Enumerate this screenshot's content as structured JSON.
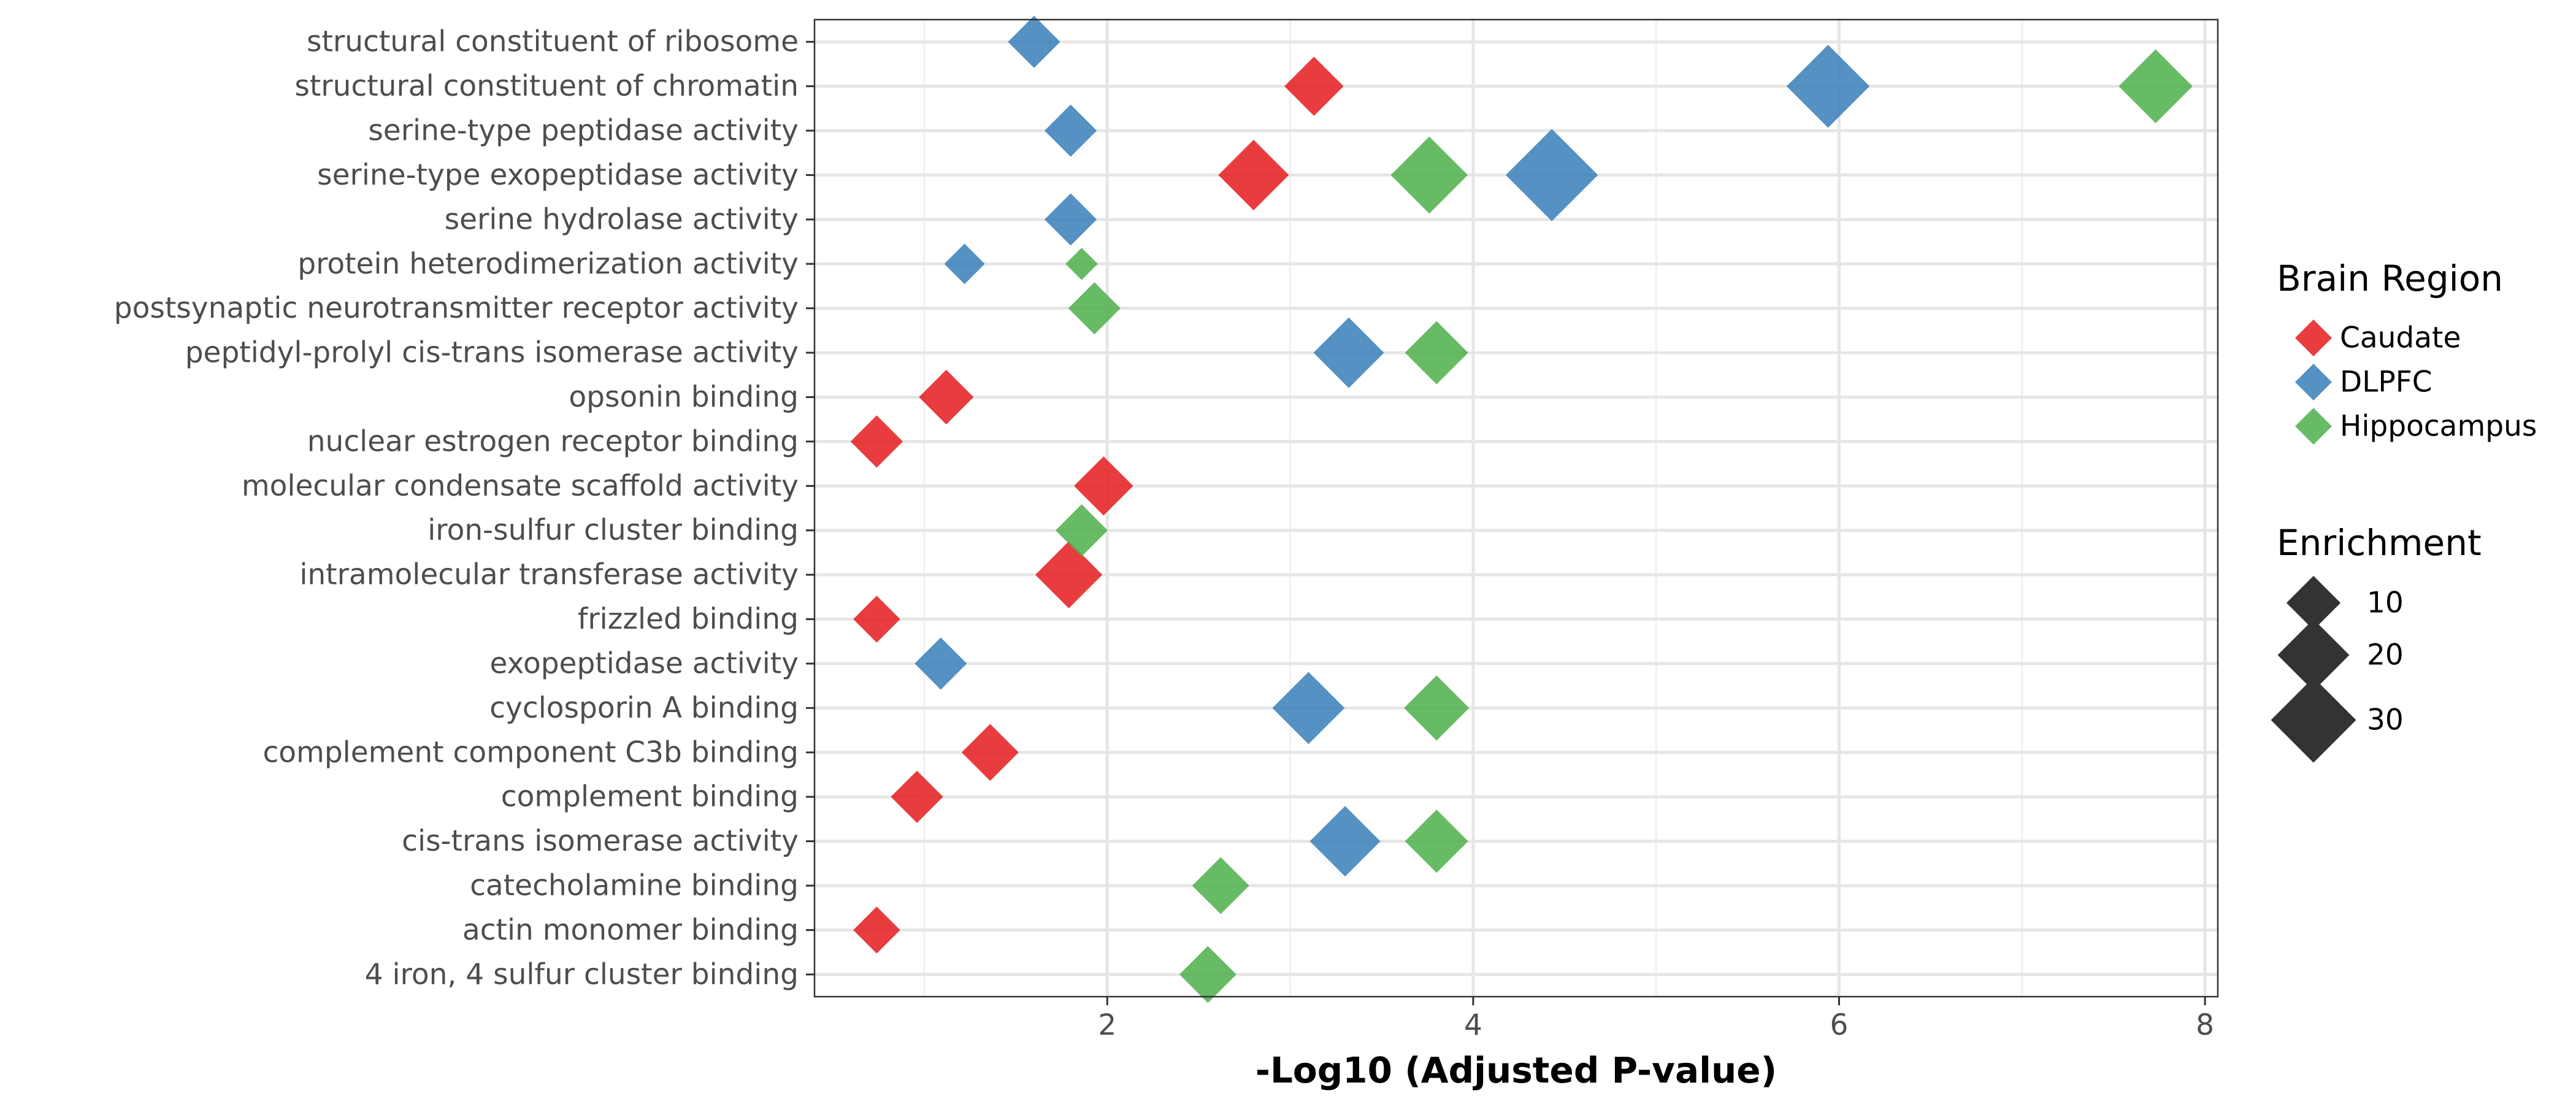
{
  "chart_data": {
    "type": "scatter",
    "title": "",
    "xlabel": "-Log10 (Adjusted P-value)",
    "ylabel": "",
    "xlim": [
      0.4,
      8.07
    ],
    "xticks": [
      2,
      4,
      6,
      8
    ],
    "x_minor_ticks": [
      1,
      3,
      5,
      7
    ],
    "grid": true,
    "categories": [
      "structural constituent of ribosome",
      "structural constituent of chromatin",
      "serine-type peptidase activity",
      "serine-type exopeptidase activity",
      "serine hydrolase activity",
      "protein heterodimerization activity",
      "postsynaptic neurotransmitter receptor activity",
      "peptidyl-prolyl cis-trans isomerase activity",
      "opsonin binding",
      "nuclear estrogen receptor binding",
      "molecular condensate scaffold activity",
      "iron-sulfur cluster binding",
      "intramolecular transferase activity",
      "frizzled binding",
      "exopeptidase activity",
      "cyclosporin A binding",
      "complement component C3b binding",
      "complement binding",
      "cis-trans isomerase activity",
      "catecholamine binding",
      "actin monomer binding",
      "4 iron, 4 sulfur cluster binding"
    ],
    "series": [
      {
        "name": "Caudate",
        "color": "#e41a1c",
        "points": [
          {
            "term": "structural constituent of chromatin",
            "x": 3.13,
            "enrichment": 11
          },
          {
            "term": "serine-type exopeptidase activity",
            "x": 2.8,
            "enrichment": 17
          },
          {
            "term": "opsonin binding",
            "x": 1.12,
            "enrichment": 9
          },
          {
            "term": "nuclear estrogen receptor binding",
            "x": 0.74,
            "enrichment": 8
          },
          {
            "term": "molecular condensate scaffold activity",
            "x": 1.98,
            "enrichment": 11
          },
          {
            "term": "intramolecular transferase activity",
            "x": 1.79,
            "enrichment": 15
          },
          {
            "term": "frizzled binding",
            "x": 0.74,
            "enrichment": 6
          },
          {
            "term": "complement component C3b binding",
            "x": 1.36,
            "enrichment": 10
          },
          {
            "term": "complement binding",
            "x": 0.96,
            "enrichment": 8
          },
          {
            "term": "actin monomer binding",
            "x": 0.74,
            "enrichment": 6
          }
        ]
      },
      {
        "name": "DLPFC",
        "color": "#377eb8",
        "points": [
          {
            "term": "structural constituent of ribosome",
            "x": 1.6,
            "enrichment": 8
          },
          {
            "term": "structural constituent of chromatin",
            "x": 5.94,
            "enrichment": 25
          },
          {
            "term": "serine-type peptidase activity",
            "x": 1.8,
            "enrichment": 8
          },
          {
            "term": "serine-type exopeptidase activity",
            "x": 4.43,
            "enrichment": 32
          },
          {
            "term": "serine hydrolase activity",
            "x": 1.8,
            "enrichment": 8
          },
          {
            "term": "protein heterodimerization activity",
            "x": 1.22,
            "enrichment": 4
          },
          {
            "term": "peptidyl-prolyl cis-trans isomerase activity",
            "x": 3.32,
            "enrichment": 17
          },
          {
            "term": "exopeptidase activity",
            "x": 1.09,
            "enrichment": 8
          },
          {
            "term": "cyclosporin A binding",
            "x": 3.1,
            "enrichment": 18
          },
          {
            "term": "cis-trans isomerase activity",
            "x": 3.3,
            "enrichment": 17
          }
        ]
      },
      {
        "name": "Hippocampus",
        "color": "#4daf4a",
        "points": [
          {
            "term": "structural constituent of chromatin",
            "x": 7.73,
            "enrichment": 19
          },
          {
            "term": "serine-type exopeptidase activity",
            "x": 3.76,
            "enrichment": 21
          },
          {
            "term": "protein heterodimerization activity",
            "x": 1.86,
            "enrichment": 2
          },
          {
            "term": "postsynaptic neurotransmitter receptor activity",
            "x": 1.93,
            "enrichment": 8
          },
          {
            "term": "peptidyl-prolyl cis-trans isomerase activity",
            "x": 3.8,
            "enrichment": 13
          },
          {
            "term": "iron-sulfur cluster binding",
            "x": 1.86,
            "enrichment": 8
          },
          {
            "term": "cyclosporin A binding",
            "x": 3.8,
            "enrichment": 14
          },
          {
            "term": "cis-trans isomerase activity",
            "x": 3.8,
            "enrichment": 13
          },
          {
            "term": "catecholamine binding",
            "x": 2.62,
            "enrichment": 10
          },
          {
            "term": "4 iron, 4 sulfur cluster binding",
            "x": 2.55,
            "enrichment": 10
          }
        ]
      }
    ],
    "legend": {
      "placement": "right",
      "color_title": "Brain Region",
      "color_entries": [
        "Caudate",
        "DLPFC",
        "Hippocampus"
      ],
      "size_title": "Enrichment",
      "size_entries": [
        10,
        20,
        30
      ],
      "size_key_color": "#333333"
    }
  }
}
